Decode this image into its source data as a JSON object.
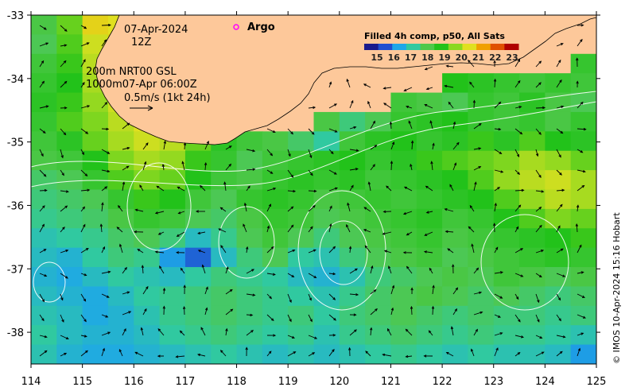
{
  "map": {
    "date_label": "07-Apr-2024",
    "time_label": "12Z",
    "depth_line_1": "200m  NRT00 GSL",
    "depth_line_2": "1000m07-Apr 06:00Z",
    "scale_label": "0.5m/s (1kt 24h)",
    "argo_label": "Argo",
    "colorbar_title": "Filled 4h comp, p50, All Sats",
    "colorbar_ticks": [
      "15",
      "16",
      "17",
      "18",
      "19",
      "20",
      "21",
      "22",
      "23"
    ],
    "colorbar_colors": [
      "#1a1a8c",
      "#1f4fd0",
      "#1ea7e8",
      "#30c9a0",
      "#4fc84a",
      "#22c21a",
      "#8ad820",
      "#e0e020",
      "#f0a000",
      "#e05000",
      "#b00000"
    ],
    "credit": "© IMOS 10-Apr-2024 15:16 Hobart",
    "lon_ticks": [
      "114",
      "115",
      "116",
      "117",
      "118",
      "119",
      "120",
      "121",
      "122",
      "123",
      "124",
      "125"
    ],
    "lat_ticks": [
      "-33",
      "-34",
      "-35",
      "-36",
      "-37",
      "-38"
    ],
    "lon_range": [
      114,
      125
    ],
    "lat_range": [
      -38.5,
      -33
    ],
    "land_color": "#fdc89a",
    "argo_color": "#ff00ff",
    "sst_grid": [
      [
        18.2,
        19.6,
        21.0,
        20.8,
        99,
        99,
        99,
        99,
        99,
        99,
        99,
        99,
        99,
        99,
        99,
        99,
        99,
        99,
        99,
        99,
        99,
        99
      ],
      [
        18.0,
        19.4,
        20.6,
        21.2,
        99,
        99,
        99,
        99,
        99,
        99,
        99,
        99,
        99,
        99,
        99,
        99,
        99,
        99,
        99,
        99,
        99,
        99
      ],
      [
        18.4,
        19.2,
        20.4,
        21.0,
        21.4,
        99,
        99,
        99,
        99,
        99,
        99,
        99,
        99,
        99,
        99,
        99,
        99,
        99,
        99,
        99,
        99,
        18.6
      ],
      [
        18.6,
        19.0,
        20.2,
        20.8,
        21.2,
        99,
        99,
        99,
        99,
        99,
        99,
        99,
        99,
        99,
        99,
        99,
        19.0,
        18.8,
        18.6,
        18.4,
        18.6,
        18.4
      ],
      [
        18.8,
        19.2,
        20.0,
        20.6,
        21.0,
        99,
        99,
        99,
        99,
        99,
        99,
        99,
        99,
        99,
        18.4,
        18.2,
        18.0,
        18.6,
        18.4,
        18.8,
        18.2,
        18.0
      ],
      [
        18.6,
        19.4,
        19.8,
        20.4,
        20.8,
        20.6,
        99,
        99,
        99,
        99,
        99,
        18.2,
        17.6,
        18.0,
        18.6,
        18.8,
        19.0,
        18.6,
        18.4,
        18.6,
        18.2,
        18.6
      ],
      [
        18.4,
        18.8,
        19.6,
        20.2,
        20.6,
        20.4,
        19.6,
        18.8,
        18.4,
        18.2,
        17.8,
        17.2,
        18.4,
        18.8,
        19.0,
        18.6,
        18.8,
        19.2,
        18.8,
        19.4,
        19.0,
        18.8
      ],
      [
        18.2,
        18.4,
        19.0,
        19.8,
        20.2,
        20.0,
        19.2,
        18.6,
        18.0,
        18.4,
        18.6,
        18.8,
        19.0,
        18.6,
        18.8,
        19.2,
        19.4,
        19.6,
        19.8,
        20.2,
        20.0,
        19.6
      ],
      [
        17.8,
        18.0,
        18.6,
        19.4,
        19.8,
        19.6,
        19.0,
        18.4,
        18.2,
        18.6,
        18.8,
        18.6,
        18.8,
        18.4,
        18.6,
        18.8,
        19.0,
        19.4,
        20.0,
        20.4,
        20.6,
        20.2
      ],
      [
        17.6,
        17.8,
        18.0,
        18.6,
        19.2,
        19.0,
        18.4,
        18.0,
        18.6,
        18.8,
        18.6,
        18.2,
        18.4,
        18.6,
        18.4,
        18.6,
        18.8,
        19.0,
        19.4,
        20.0,
        20.4,
        20.2
      ],
      [
        17.4,
        17.6,
        17.8,
        18.2,
        18.6,
        18.4,
        18.0,
        17.8,
        18.2,
        18.6,
        18.4,
        18.0,
        18.2,
        18.4,
        18.6,
        18.8,
        18.4,
        18.6,
        19.0,
        19.4,
        19.8,
        19.6
      ],
      [
        17.0,
        17.2,
        17.4,
        17.8,
        18.0,
        17.6,
        16.8,
        17.4,
        18.0,
        18.4,
        18.0,
        17.6,
        18.0,
        18.2,
        18.4,
        18.6,
        18.2,
        18.4,
        18.6,
        18.8,
        19.0,
        19.2
      ],
      [
        16.8,
        16.6,
        17.2,
        17.6,
        17.4,
        16.2,
        15.6,
        16.8,
        17.6,
        18.0,
        17.2,
        17.0,
        17.6,
        18.0,
        18.2,
        18.4,
        18.0,
        18.2,
        18.4,
        18.6,
        18.8,
        18.6
      ],
      [
        16.6,
        16.4,
        16.8,
        17.2,
        17.0,
        16.8,
        17.2,
        17.6,
        17.4,
        17.2,
        16.8,
        16.6,
        17.0,
        17.6,
        17.8,
        18.0,
        18.2,
        18.0,
        18.4,
        18.2,
        18.0,
        18.2
      ],
      [
        16.8,
        16.6,
        16.4,
        16.8,
        17.2,
        17.4,
        17.6,
        17.8,
        17.6,
        17.4,
        17.2,
        17.0,
        17.4,
        17.8,
        18.0,
        18.2,
        18.0,
        17.8,
        18.0,
        17.8,
        17.6,
        17.8
      ],
      [
        17.0,
        16.8,
        16.4,
        16.6,
        17.0,
        17.4,
        17.6,
        17.8,
        17.6,
        17.4,
        17.6,
        17.2,
        17.6,
        17.8,
        18.0,
        17.8,
        17.6,
        17.8,
        17.6,
        17.6,
        17.4,
        17.6
      ],
      [
        17.2,
        16.8,
        16.6,
        16.6,
        16.8,
        17.2,
        17.4,
        17.6,
        17.4,
        17.2,
        17.4,
        17.0,
        17.4,
        17.6,
        17.8,
        17.6,
        17.4,
        17.6,
        17.4,
        17.4,
        17.2,
        17.0
      ],
      [
        17.0,
        16.6,
        16.4,
        16.4,
        16.6,
        16.8,
        17.0,
        17.2,
        17.0,
        16.8,
        17.0,
        16.8,
        17.0,
        17.2,
        17.4,
        17.2,
        17.0,
        17.2,
        17.0,
        17.0,
        16.8,
        16.2
      ]
    ]
  }
}
